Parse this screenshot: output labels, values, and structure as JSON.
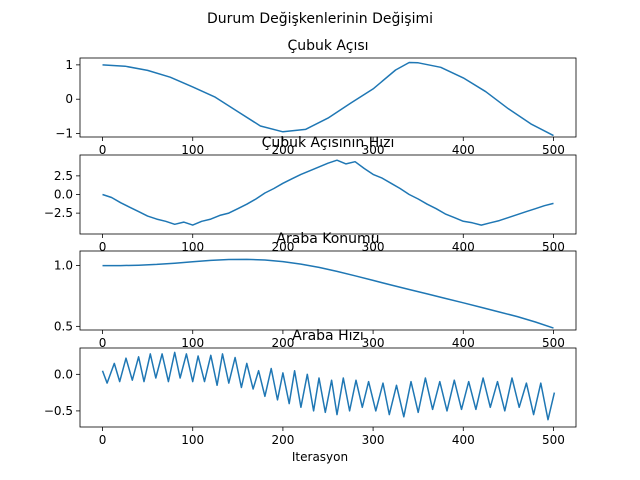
{
  "figure": {
    "suptitle": "Durum Değişkenlerinin Değişimi",
    "xlabel": "Iterasyon"
  },
  "colors": {
    "series": "#1f77b4"
  },
  "chart_data": [
    {
      "type": "line",
      "title": "Çubuk Açısı",
      "xlabel": "",
      "ylabel": "",
      "xlim": [
        -25,
        525
      ],
      "ylim": [
        -1.1,
        1.2
      ],
      "xticks": [
        0,
        100,
        200,
        300,
        400,
        500
      ],
      "yticks": [
        1,
        0,
        -1
      ],
      "ytick_labels": [
        "1",
        "0",
        "−1"
      ],
      "grid": false,
      "series": [
        {
          "x": [
            0,
            25,
            50,
            75,
            100,
            125,
            150,
            175,
            200,
            225,
            250,
            275,
            300,
            325,
            340,
            350,
            375,
            400,
            425,
            450,
            475,
            500
          ],
          "y": [
            1.0,
            0.96,
            0.84,
            0.64,
            0.36,
            0.06,
            -0.36,
            -0.78,
            -0.95,
            -0.88,
            -0.55,
            -0.12,
            0.3,
            0.85,
            1.07,
            1.06,
            0.93,
            0.62,
            0.22,
            -0.28,
            -0.72,
            -1.06
          ]
        }
      ]
    },
    {
      "type": "line",
      "title": "Çubuk Açısının Hızı",
      "xlabel": "",
      "ylabel": "",
      "xlim": [
        -25,
        525
      ],
      "ylim": [
        -5.3,
        5.3
      ],
      "xticks": [
        0,
        100,
        200,
        300,
        400,
        500
      ],
      "yticks": [
        2.5,
        0.0,
        -2.5
      ],
      "ytick_labels": [
        "2.5",
        "0.0",
        "−2.5"
      ],
      "grid": false,
      "series": [
        {
          "x": [
            0,
            10,
            20,
            30,
            40,
            50,
            60,
            70,
            80,
            90,
            100,
            110,
            120,
            130,
            140,
            150,
            160,
            170,
            180,
            190,
            200,
            210,
            220,
            230,
            240,
            250,
            260,
            270,
            280,
            290,
            300,
            310,
            320,
            330,
            340,
            350,
            360,
            370,
            380,
            390,
            400,
            410,
            420,
            430,
            440,
            450,
            460,
            470,
            480,
            490,
            500
          ],
          "y": [
            0.0,
            -0.4,
            -1.1,
            -1.7,
            -2.3,
            -2.9,
            -3.3,
            -3.6,
            -4.0,
            -3.7,
            -4.1,
            -3.6,
            -3.3,
            -2.8,
            -2.5,
            -1.9,
            -1.3,
            -0.6,
            0.2,
            0.8,
            1.5,
            2.1,
            2.7,
            3.2,
            3.7,
            4.2,
            4.6,
            4.1,
            4.4,
            3.5,
            2.7,
            2.2,
            1.5,
            0.8,
            0.0,
            -0.6,
            -1.3,
            -1.9,
            -2.6,
            -3.1,
            -3.6,
            -3.8,
            -4.1,
            -3.8,
            -3.5,
            -3.1,
            -2.7,
            -2.3,
            -1.9,
            -1.5,
            -1.2
          ]
        }
      ]
    },
    {
      "type": "line",
      "title": "Araba Konumu",
      "xlabel": "",
      "ylabel": "",
      "xlim": [
        -25,
        525
      ],
      "ylim": [
        0.47,
        1.12
      ],
      "xticks": [
        0,
        100,
        200,
        300,
        400,
        500
      ],
      "yticks": [
        1.0,
        0.5
      ],
      "ytick_labels": [
        "1.0",
        "0.5"
      ],
      "grid": false,
      "series": [
        {
          "x": [
            0,
            20,
            40,
            60,
            80,
            100,
            120,
            140,
            160,
            180,
            200,
            220,
            240,
            260,
            280,
            300,
            320,
            340,
            360,
            380,
            400,
            420,
            440,
            460,
            480,
            500
          ],
          "y": [
            1.0,
            1.0,
            1.003,
            1.01,
            1.02,
            1.032,
            1.043,
            1.05,
            1.051,
            1.046,
            1.033,
            1.012,
            0.985,
            0.952,
            0.916,
            0.878,
            0.84,
            0.803,
            0.767,
            0.73,
            0.694,
            0.656,
            0.618,
            0.58,
            0.536,
            0.486
          ]
        }
      ]
    },
    {
      "type": "line",
      "title": "Araba Hızı",
      "xlabel": "",
      "ylabel": "",
      "xlim": [
        -25,
        525
      ],
      "ylim": [
        -0.72,
        0.36
      ],
      "xticks": [
        0,
        100,
        200,
        300,
        400,
        500
      ],
      "yticks": [
        0.0,
        -0.5
      ],
      "ytick_labels": [
        "0.0",
        "−0.5"
      ],
      "grid": false,
      "series": [
        {
          "x": [
            0,
            5,
            13,
            19,
            26,
            33,
            40,
            46,
            53,
            59,
            66,
            73,
            80,
            86,
            93,
            100,
            106,
            113,
            120,
            127,
            133,
            140,
            147,
            154,
            160,
            167,
            173,
            180,
            187,
            194,
            200,
            207,
            213,
            220,
            227,
            234,
            240,
            247,
            254,
            260,
            267,
            274,
            281,
            288,
            295,
            303,
            311,
            318,
            326,
            334,
            342,
            350,
            358,
            366,
            374,
            382,
            390,
            398,
            406,
            414,
            422,
            430,
            438,
            446,
            454,
            462,
            470,
            478,
            486,
            494,
            501
          ],
          "y": [
            0.05,
            -0.12,
            0.15,
            -0.1,
            0.22,
            -0.08,
            0.24,
            -0.1,
            0.28,
            -0.05,
            0.28,
            -0.1,
            0.3,
            -0.05,
            0.28,
            -0.1,
            0.25,
            -0.1,
            0.26,
            -0.15,
            0.28,
            -0.12,
            0.23,
            -0.18,
            0.15,
            -0.2,
            0.05,
            -0.3,
            0.08,
            -0.35,
            0.02,
            -0.4,
            0.05,
            -0.45,
            0.0,
            -0.5,
            -0.05,
            -0.52,
            -0.08,
            -0.55,
            -0.05,
            -0.5,
            -0.08,
            -0.45,
            -0.1,
            -0.5,
            -0.12,
            -0.55,
            -0.15,
            -0.58,
            -0.1,
            -0.52,
            -0.05,
            -0.48,
            -0.1,
            -0.5,
            -0.08,
            -0.48,
            -0.1,
            -0.48,
            -0.05,
            -0.45,
            -0.1,
            -0.5,
            -0.05,
            -0.45,
            -0.12,
            -0.55,
            -0.12,
            -0.62,
            -0.25
          ]
        }
      ]
    }
  ]
}
